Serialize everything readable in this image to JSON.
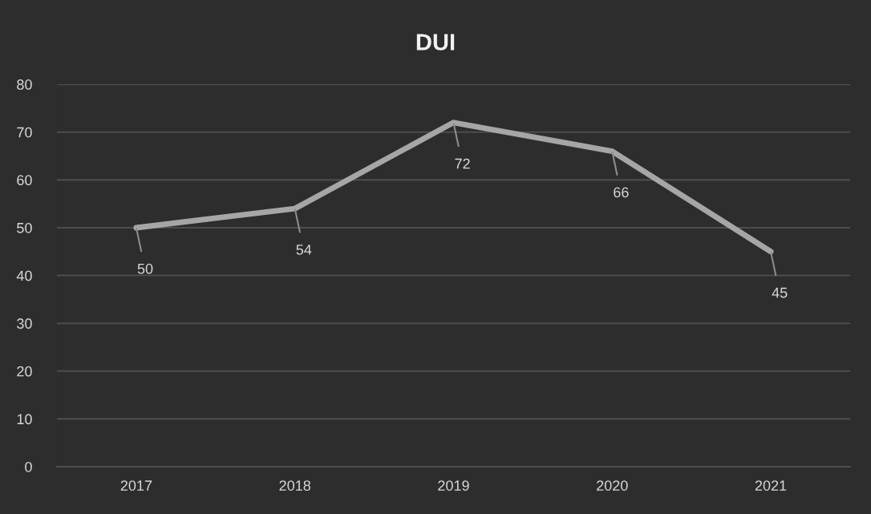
{
  "chart_data": {
    "type": "line",
    "title": "DUI",
    "categories": [
      "2017",
      "2018",
      "2019",
      "2020",
      "2021"
    ],
    "series": [
      {
        "color": "#a6a6a6",
        "values": [
          50,
          54,
          72,
          66,
          45
        ]
      }
    ],
    "ylim": [
      0,
      80
    ],
    "yticks": [
      0,
      10,
      20,
      30,
      40,
      50,
      60,
      70,
      80
    ],
    "grid": "y",
    "data_labels": true
  }
}
